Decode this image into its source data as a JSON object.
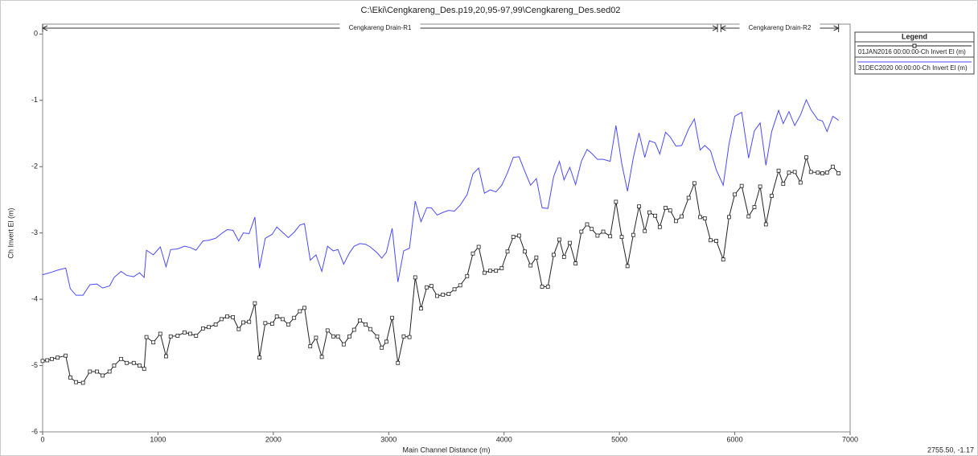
{
  "chart_data": {
    "type": "line",
    "title": "C:\\Eki\\Cengkareng_Des.p19,20,95-97,99\\Cengkareng_Des.sed02",
    "x_label": "Main Channel Distance (m)",
    "y_label": "Ch Invert El (m)",
    "legend_title": "Legend",
    "cursor_readout": "2755.50, -1.17",
    "reaches": [
      {
        "label": "Cengkareng Drain-R1",
        "start": 0,
        "end": 5850
      },
      {
        "label": "Cengkareng Drain-R2",
        "start": 5880,
        "end": 6900
      }
    ],
    "xlim": [
      0,
      7000
    ],
    "xticks": [
      0,
      1000,
      2000,
      3000,
      4000,
      5000,
      6000,
      7000
    ],
    "ylim": [
      -6,
      0.15
    ],
    "yticks": [
      0,
      -1,
      -2,
      -3,
      -4,
      -5,
      -6
    ],
    "x": [
      0,
      40,
      80,
      130,
      200,
      240,
      290,
      350,
      410,
      470,
      520,
      580,
      620,
      680,
      730,
      790,
      840,
      880,
      900,
      960,
      1020,
      1070,
      1110,
      1170,
      1230,
      1280,
      1330,
      1390,
      1440,
      1500,
      1550,
      1600,
      1650,
      1700,
      1740,
      1790,
      1840,
      1880,
      1930,
      1990,
      2030,
      2080,
      2130,
      2180,
      2230,
      2270,
      2320,
      2370,
      2420,
      2470,
      2520,
      2560,
      2610,
      2660,
      2700,
      2750,
      2800,
      2840,
      2900,
      2940,
      2980,
      3030,
      3080,
      3130,
      3180,
      3230,
      3280,
      3330,
      3370,
      3420,
      3470,
      3520,
      3570,
      3620,
      3680,
      3730,
      3780,
      3830,
      3880,
      3930,
      3980,
      4030,
      4080,
      4130,
      4180,
      4230,
      4280,
      4330,
      4380,
      4430,
      4480,
      4520,
      4570,
      4620,
      4670,
      4720,
      4760,
      4810,
      4860,
      4920,
      4970,
      5020,
      5070,
      5120,
      5170,
      5220,
      5260,
      5310,
      5350,
      5400,
      5440,
      5490,
      5540,
      5600,
      5650,
      5700,
      5740,
      5790,
      5840,
      5900,
      5950,
      6000,
      6060,
      6120,
      6170,
      6220,
      6270,
      6320,
      6380,
      6420,
      6470,
      6520,
      6570,
      6620,
      6660,
      6720,
      6760,
      6800,
      6850,
      6900
    ],
    "series": [
      {
        "name": "01JAN2016 00:00:00-Ch Invert El (m)",
        "color": "#222222",
        "markers": true,
        "values": [
          -4.93,
          -4.92,
          -4.9,
          -4.88,
          -4.85,
          -5.18,
          -5.25,
          -5.26,
          -5.09,
          -5.09,
          -5.15,
          -5.09,
          -5.0,
          -4.9,
          -4.96,
          -4.96,
          -5.0,
          -5.05,
          -4.57,
          -4.65,
          -4.52,
          -4.86,
          -4.56,
          -4.55,
          -4.5,
          -4.52,
          -4.55,
          -4.44,
          -4.42,
          -4.38,
          -4.3,
          -4.26,
          -4.27,
          -4.45,
          -4.35,
          -4.34,
          -4.06,
          -4.88,
          -4.36,
          -4.37,
          -4.26,
          -4.3,
          -4.38,
          -4.28,
          -4.18,
          -4.13,
          -4.71,
          -4.58,
          -4.87,
          -4.47,
          -4.56,
          -4.56,
          -4.68,
          -4.56,
          -4.46,
          -4.32,
          -4.38,
          -4.45,
          -4.56,
          -4.73,
          -4.64,
          -4.28,
          -4.96,
          -4.56,
          -4.57,
          -3.67,
          -4.14,
          -3.82,
          -3.8,
          -3.95,
          -3.93,
          -3.92,
          -3.85,
          -3.79,
          -3.65,
          -3.31,
          -3.21,
          -3.6,
          -3.57,
          -3.57,
          -3.53,
          -3.28,
          -3.06,
          -3.04,
          -3.28,
          -3.49,
          -3.37,
          -3.81,
          -3.81,
          -3.33,
          -3.1,
          -3.36,
          -3.15,
          -3.46,
          -2.98,
          -2.87,
          -2.94,
          -3.04,
          -2.98,
          -3.05,
          -2.53,
          -3.06,
          -3.5,
          -3.03,
          -2.6,
          -2.97,
          -2.69,
          -2.74,
          -2.91,
          -2.62,
          -2.66,
          -2.82,
          -2.75,
          -2.47,
          -2.25,
          -2.76,
          -2.78,
          -3.11,
          -3.12,
          -3.4,
          -2.76,
          -2.42,
          -2.29,
          -2.75,
          -2.61,
          -2.3,
          -2.87,
          -2.44,
          -2.06,
          -2.26,
          -2.09,
          -2.08,
          -2.24,
          -1.86,
          -2.08,
          -2.09,
          -2.1,
          -2.09,
          -2.0,
          -2.1
        ]
      },
      {
        "name": "31DEC2020 00:00:00-Ch Invert El (m)",
        "color": "#4a4aff",
        "markers": false,
        "values": [
          -3.63,
          -3.61,
          -3.59,
          -3.56,
          -3.53,
          -3.84,
          -3.94,
          -3.94,
          -3.78,
          -3.77,
          -3.83,
          -3.8,
          -3.67,
          -3.58,
          -3.64,
          -3.66,
          -3.6,
          -3.67,
          -3.26,
          -3.33,
          -3.21,
          -3.51,
          -3.25,
          -3.24,
          -3.2,
          -3.22,
          -3.26,
          -3.12,
          -3.11,
          -3.08,
          -3.01,
          -2.95,
          -2.96,
          -3.12,
          -3.0,
          -3.01,
          -2.76,
          -3.53,
          -3.08,
          -3.02,
          -2.91,
          -2.99,
          -3.07,
          -2.99,
          -2.88,
          -2.86,
          -3.41,
          -3.33,
          -3.58,
          -3.2,
          -3.27,
          -3.25,
          -3.47,
          -3.3,
          -3.2,
          -3.16,
          -3.17,
          -3.21,
          -3.3,
          -3.38,
          -3.29,
          -2.93,
          -3.74,
          -3.27,
          -3.23,
          -2.52,
          -2.83,
          -2.62,
          -2.62,
          -2.73,
          -2.69,
          -2.66,
          -2.67,
          -2.58,
          -2.42,
          -2.11,
          -2.02,
          -2.4,
          -2.35,
          -2.38,
          -2.28,
          -2.09,
          -1.86,
          -1.85,
          -2.07,
          -2.28,
          -2.18,
          -2.62,
          -2.63,
          -2.15,
          -1.92,
          -2.2,
          -2.01,
          -2.27,
          -1.92,
          -1.74,
          -1.8,
          -1.89,
          -1.89,
          -1.92,
          -1.38,
          -1.95,
          -2.37,
          -1.87,
          -1.49,
          -1.86,
          -1.61,
          -1.64,
          -1.81,
          -1.48,
          -1.55,
          -1.69,
          -1.68,
          -1.43,
          -1.28,
          -1.75,
          -1.68,
          -1.76,
          -2.05,
          -2.28,
          -1.66,
          -1.24,
          -1.18,
          -1.87,
          -1.46,
          -1.34,
          -1.98,
          -1.47,
          -1.15,
          -1.35,
          -1.17,
          -1.38,
          -1.22,
          -0.99,
          -1.14,
          -1.29,
          -1.31,
          -1.47,
          -1.24,
          -1.3
        ]
      }
    ]
  }
}
